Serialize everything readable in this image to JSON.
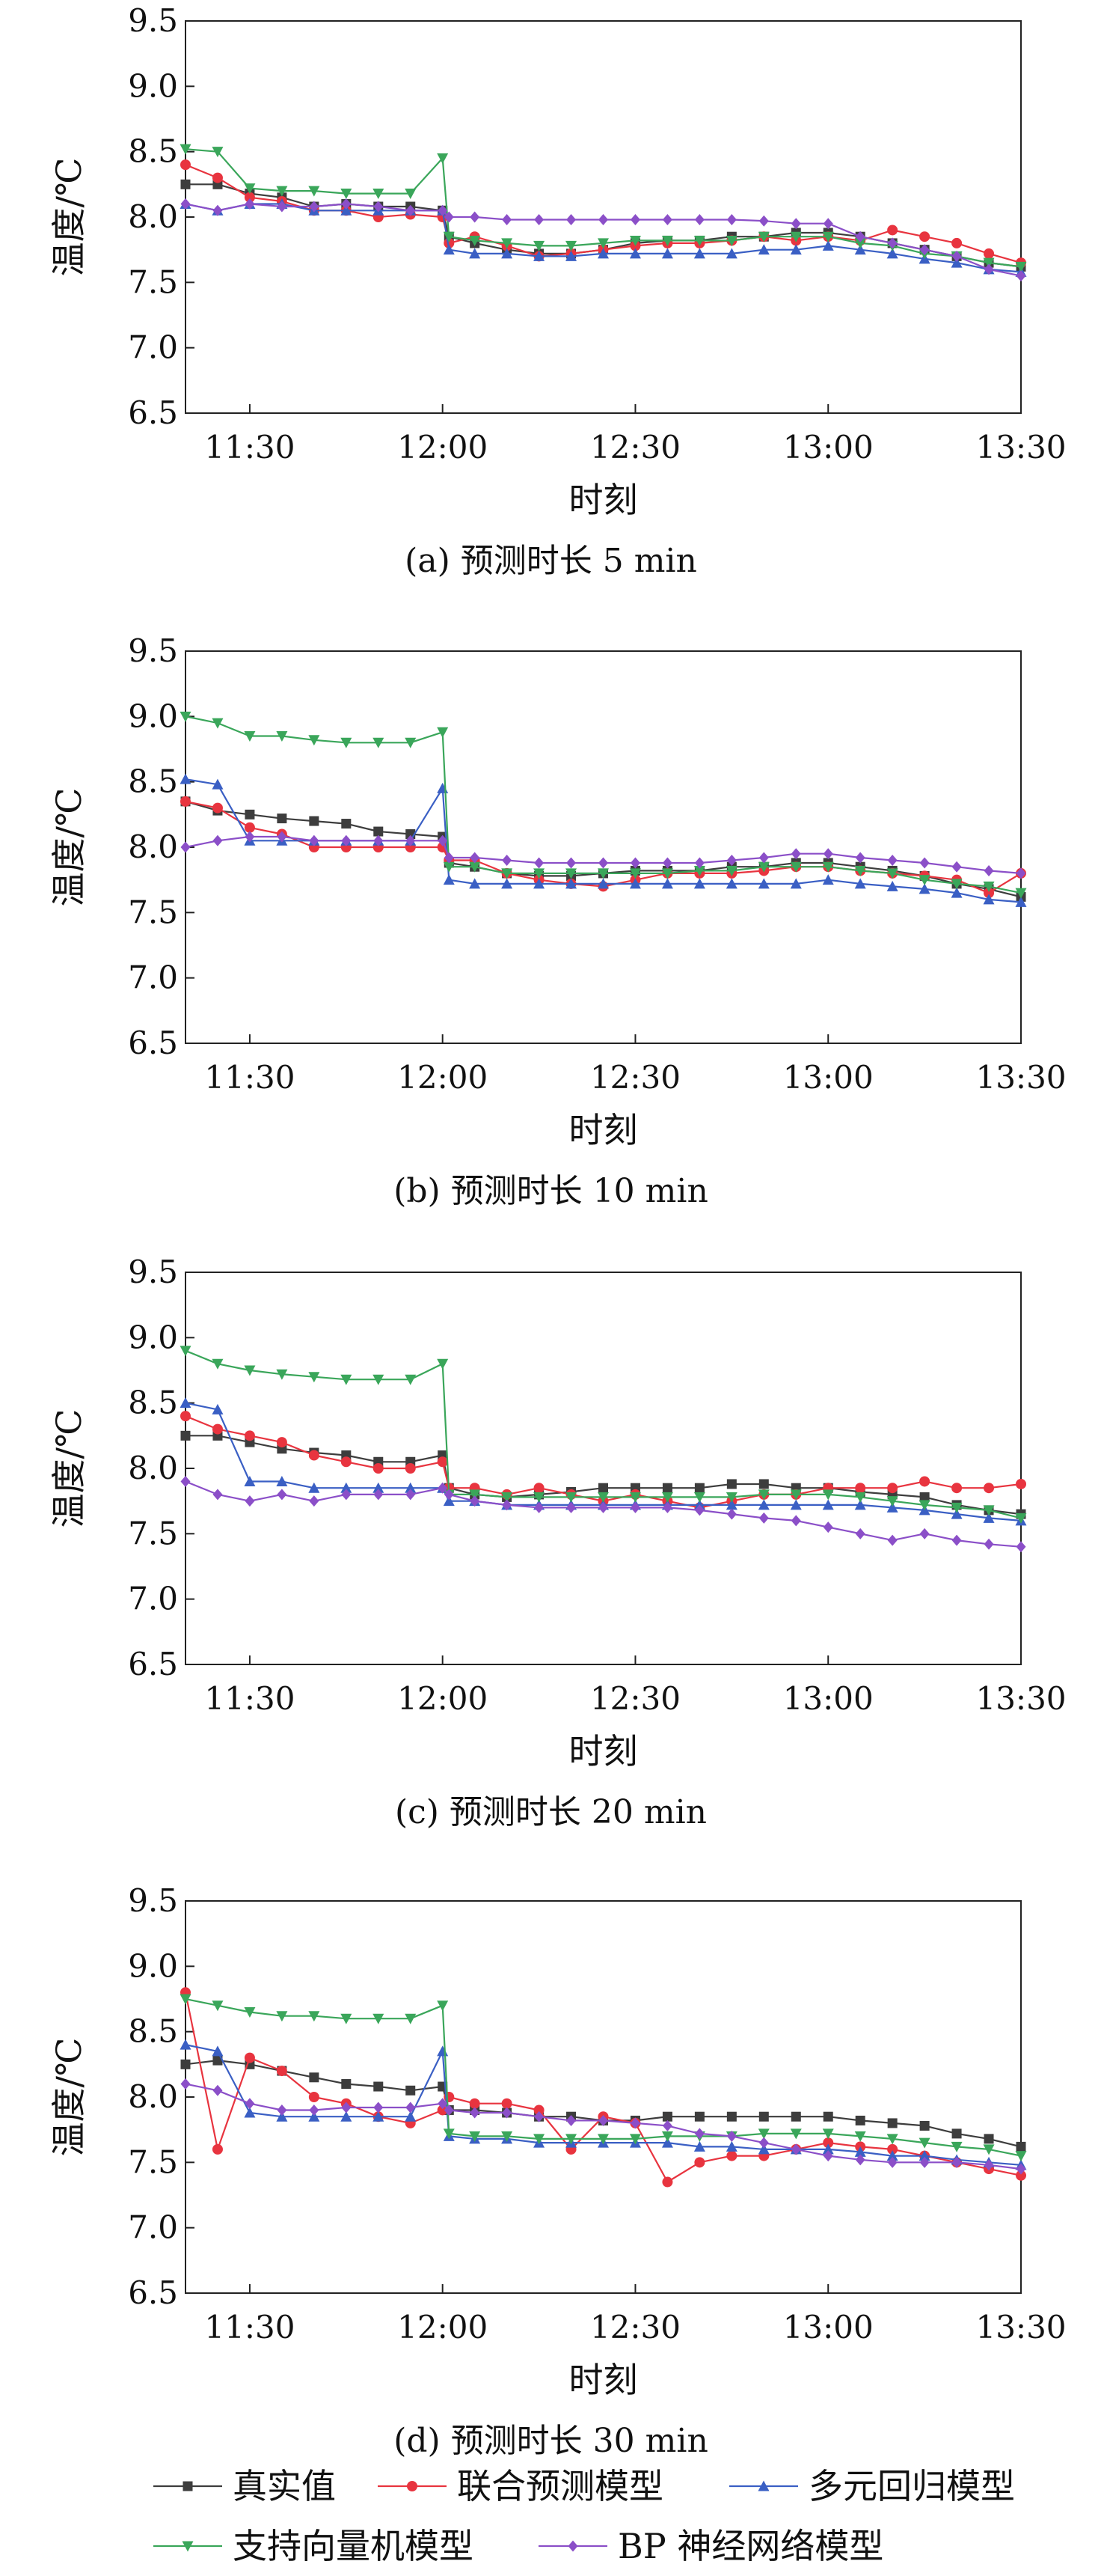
{
  "series_style": [
    {
      "name": "真实值",
      "color": "#3d3d3d",
      "marker": "square"
    },
    {
      "name": "联合预测模型",
      "color": "#e8343f",
      "marker": "circle"
    },
    {
      "name": "多元回归模型",
      "color": "#3a5fc4",
      "marker": "triangle-up"
    },
    {
      "name": "支持向量机模型",
      "color": "#3aa65a",
      "marker": "triangle-down"
    },
    {
      "name": "BP 神经网络模型",
      "color": "#8b4fc8",
      "marker": "diamond"
    }
  ],
  "legend": {
    "row1": [
      "真实值",
      "联合预测模型",
      "多元回归模型"
    ],
    "row2": [
      "支持向量机模型",
      "BP 神经网络模型"
    ]
  },
  "chart_data": [
    {
      "type": "line",
      "caption": "(a) 预测时长 5 min",
      "xlabel": "时刻",
      "ylabel": "温度/℃",
      "ylim": [
        6.5,
        9.5
      ],
      "yticks": [
        "6.5",
        "7.0",
        "7.5",
        "8.0",
        "8.5",
        "9.0",
        "9.5"
      ],
      "xticks": [
        "11:30",
        "12:00",
        "12:30",
        "13:00",
        "13:30"
      ],
      "x": [
        "11:20",
        "11:25",
        "11:30",
        "11:35",
        "11:40",
        "11:45",
        "11:50",
        "11:55",
        "12:00",
        "12:01",
        "12:05",
        "12:10",
        "12:15",
        "12:20",
        "12:25",
        "12:30",
        "12:35",
        "12:40",
        "12:45",
        "12:50",
        "12:55",
        "13:00",
        "13:05",
        "13:10",
        "13:15",
        "13:20",
        "13:25",
        "13:30"
      ],
      "series": [
        {
          "name": "真实值",
          "values": [
            8.25,
            8.25,
            8.18,
            8.15,
            8.08,
            8.1,
            8.08,
            8.08,
            8.05,
            7.85,
            7.8,
            7.75,
            7.72,
            7.72,
            7.75,
            7.8,
            7.82,
            7.82,
            7.85,
            7.85,
            7.88,
            7.88,
            7.85,
            7.8,
            7.75,
            7.7,
            7.65,
            7.62
          ]
        },
        {
          "name": "联合预测模型",
          "values": [
            8.4,
            8.3,
            8.15,
            8.12,
            8.05,
            8.05,
            8.0,
            8.02,
            8.0,
            7.8,
            7.85,
            7.78,
            7.7,
            7.72,
            7.75,
            7.78,
            7.8,
            7.8,
            7.82,
            7.85,
            7.82,
            7.85,
            7.82,
            7.9,
            7.85,
            7.8,
            7.72,
            7.65
          ]
        },
        {
          "name": "多元回归模型",
          "values": [
            8.1,
            8.05,
            8.1,
            8.1,
            8.05,
            8.05,
            8.05,
            8.05,
            8.05,
            7.75,
            7.72,
            7.72,
            7.7,
            7.7,
            7.72,
            7.72,
            7.72,
            7.72,
            7.72,
            7.75,
            7.75,
            7.78,
            7.75,
            7.72,
            7.68,
            7.65,
            7.6,
            7.58
          ]
        },
        {
          "name": "支持向量机模型",
          "values": [
            8.52,
            8.5,
            8.22,
            8.2,
            8.2,
            8.18,
            8.18,
            8.18,
            8.45,
            7.85,
            7.82,
            7.8,
            7.78,
            7.78,
            7.8,
            7.82,
            7.82,
            7.82,
            7.82,
            7.85,
            7.85,
            7.85,
            7.8,
            7.78,
            7.72,
            7.7,
            7.65,
            7.62
          ]
        },
        {
          "name": "BP 神经网络模型",
          "values": [
            8.1,
            8.05,
            8.1,
            8.08,
            8.08,
            8.1,
            8.08,
            8.05,
            8.05,
            8.0,
            8.0,
            7.98,
            7.98,
            7.98,
            7.98,
            7.98,
            7.98,
            7.98,
            7.98,
            7.97,
            7.95,
            7.95,
            7.85,
            7.8,
            7.75,
            7.7,
            7.6,
            7.55
          ]
        }
      ]
    },
    {
      "type": "line",
      "caption": "(b) 预测时长 10 min",
      "xlabel": "时刻",
      "ylabel": "温度/℃",
      "ylim": [
        6.5,
        9.5
      ],
      "yticks": [
        "6.5",
        "7.0",
        "7.5",
        "8.0",
        "8.5",
        "9.0",
        "9.5"
      ],
      "xticks": [
        "11:30",
        "12:00",
        "12:30",
        "13:00",
        "13:30"
      ],
      "x": [
        "11:20",
        "11:25",
        "11:30",
        "11:35",
        "11:40",
        "11:45",
        "11:50",
        "11:55",
        "12:00",
        "12:01",
        "12:05",
        "12:10",
        "12:15",
        "12:20",
        "12:25",
        "12:30",
        "12:35",
        "12:40",
        "12:45",
        "12:50",
        "12:55",
        "13:00",
        "13:05",
        "13:10",
        "13:15",
        "13:20",
        "13:25",
        "13:30"
      ],
      "series": [
        {
          "name": "真实值",
          "values": [
            8.35,
            8.28,
            8.25,
            8.22,
            8.2,
            8.18,
            8.12,
            8.1,
            8.08,
            7.88,
            7.85,
            7.8,
            7.78,
            7.78,
            7.8,
            7.82,
            7.82,
            7.82,
            7.85,
            7.85,
            7.88,
            7.88,
            7.85,
            7.82,
            7.78,
            7.72,
            7.68,
            7.62
          ]
        },
        {
          "name": "联合预测模型",
          "values": [
            8.35,
            8.3,
            8.15,
            8.1,
            8.0,
            8.0,
            8.0,
            8.0,
            8.0,
            7.9,
            7.9,
            7.8,
            7.75,
            7.72,
            7.7,
            7.75,
            7.8,
            7.8,
            7.8,
            7.82,
            7.85,
            7.85,
            7.82,
            7.8,
            7.78,
            7.75,
            7.65,
            7.8
          ]
        },
        {
          "name": "多元回归模型",
          "values": [
            8.52,
            8.48,
            8.05,
            8.05,
            8.05,
            8.05,
            8.05,
            8.05,
            8.45,
            7.75,
            7.72,
            7.72,
            7.72,
            7.72,
            7.72,
            7.72,
            7.72,
            7.72,
            7.72,
            7.72,
            7.72,
            7.75,
            7.72,
            7.7,
            7.68,
            7.65,
            7.6,
            7.58
          ]
        },
        {
          "name": "支持向量机模型",
          "values": [
            9.0,
            8.95,
            8.85,
            8.85,
            8.82,
            8.8,
            8.8,
            8.8,
            8.88,
            7.85,
            7.85,
            7.8,
            7.8,
            7.8,
            7.8,
            7.8,
            7.8,
            7.82,
            7.82,
            7.85,
            7.85,
            7.85,
            7.82,
            7.8,
            7.75,
            7.72,
            7.7,
            7.65
          ]
        },
        {
          "name": "BP 神经网络模型",
          "values": [
            8.0,
            8.05,
            8.08,
            8.08,
            8.05,
            8.05,
            8.05,
            8.05,
            8.05,
            7.92,
            7.92,
            7.9,
            7.88,
            7.88,
            7.88,
            7.88,
            7.88,
            7.88,
            7.9,
            7.92,
            7.95,
            7.95,
            7.92,
            7.9,
            7.88,
            7.85,
            7.82,
            7.8
          ]
        }
      ]
    },
    {
      "type": "line",
      "caption": "(c) 预测时长 20 min",
      "xlabel": "时刻",
      "ylabel": "温度/℃",
      "ylim": [
        6.5,
        9.5
      ],
      "yticks": [
        "6.5",
        "7.0",
        "7.5",
        "8.0",
        "8.5",
        "9.0",
        "9.5"
      ],
      "xticks": [
        "11:30",
        "12:00",
        "12:30",
        "13:00",
        "13:30"
      ],
      "x": [
        "11:20",
        "11:25",
        "11:30",
        "11:35",
        "11:40",
        "11:45",
        "11:50",
        "11:55",
        "12:00",
        "12:01",
        "12:05",
        "12:10",
        "12:15",
        "12:20",
        "12:25",
        "12:30",
        "12:35",
        "12:40",
        "12:45",
        "12:50",
        "12:55",
        "13:00",
        "13:05",
        "13:10",
        "13:15",
        "13:20",
        "13:25",
        "13:30"
      ],
      "series": [
        {
          "name": "真实值",
          "values": [
            8.25,
            8.25,
            8.2,
            8.15,
            8.12,
            8.1,
            8.05,
            8.05,
            8.1,
            7.85,
            7.8,
            7.78,
            7.8,
            7.82,
            7.85,
            7.85,
            7.85,
            7.85,
            7.88,
            7.88,
            7.85,
            7.85,
            7.82,
            7.8,
            7.78,
            7.72,
            7.68,
            7.65
          ]
        },
        {
          "name": "联合预测模型",
          "values": [
            8.4,
            8.3,
            8.25,
            8.2,
            8.1,
            8.05,
            8.0,
            8.0,
            8.05,
            7.85,
            7.85,
            7.8,
            7.85,
            7.8,
            7.75,
            7.8,
            7.75,
            7.7,
            7.75,
            7.8,
            7.8,
            7.85,
            7.85,
            7.85,
            7.9,
            7.85,
            7.85,
            7.88
          ]
        },
        {
          "name": "多元回归模型",
          "values": [
            8.5,
            8.45,
            7.9,
            7.9,
            7.85,
            7.85,
            7.85,
            7.85,
            7.85,
            7.75,
            7.75,
            7.72,
            7.72,
            7.72,
            7.72,
            7.72,
            7.72,
            7.72,
            7.72,
            7.72,
            7.72,
            7.72,
            7.72,
            7.7,
            7.68,
            7.65,
            7.62,
            7.6
          ]
        },
        {
          "name": "支持向量机模型",
          "values": [
            8.9,
            8.8,
            8.75,
            8.72,
            8.7,
            8.68,
            8.68,
            8.68,
            8.8,
            7.8,
            7.8,
            7.78,
            7.78,
            7.78,
            7.78,
            7.78,
            7.78,
            7.78,
            7.78,
            7.8,
            7.8,
            7.8,
            7.78,
            7.75,
            7.72,
            7.7,
            7.68,
            7.62
          ]
        },
        {
          "name": "BP 神经网络模型",
          "values": [
            7.9,
            7.8,
            7.75,
            7.8,
            7.75,
            7.8,
            7.8,
            7.8,
            7.85,
            7.8,
            7.75,
            7.72,
            7.7,
            7.7,
            7.7,
            7.7,
            7.7,
            7.68,
            7.65,
            7.62,
            7.6,
            7.55,
            7.5,
            7.45,
            7.5,
            7.45,
            7.42,
            7.4
          ]
        }
      ]
    },
    {
      "type": "line",
      "caption": "(d) 预测时长 30 min",
      "xlabel": "时刻",
      "ylabel": "温度/℃",
      "ylim": [
        6.5,
        9.5
      ],
      "yticks": [
        "6.5",
        "7.0",
        "7.5",
        "8.0",
        "8.5",
        "9.0",
        "9.5"
      ],
      "xticks": [
        "11:30",
        "12:00",
        "12:30",
        "13:00",
        "13:30"
      ],
      "x": [
        "11:20",
        "11:25",
        "11:30",
        "11:35",
        "11:40",
        "11:45",
        "11:50",
        "11:55",
        "12:00",
        "12:01",
        "12:05",
        "12:10",
        "12:15",
        "12:20",
        "12:25",
        "12:30",
        "12:35",
        "12:40",
        "12:45",
        "12:50",
        "12:55",
        "13:00",
        "13:05",
        "13:10",
        "13:15",
        "13:20",
        "13:25",
        "13:30"
      ],
      "series": [
        {
          "name": "真实值",
          "values": [
            8.25,
            8.28,
            8.25,
            8.2,
            8.15,
            8.1,
            8.08,
            8.05,
            8.08,
            7.9,
            7.9,
            7.88,
            7.85,
            7.85,
            7.82,
            7.82,
            7.85,
            7.85,
            7.85,
            7.85,
            7.85,
            7.85,
            7.82,
            7.8,
            7.78,
            7.72,
            7.68,
            7.62
          ]
        },
        {
          "name": "联合预测模型",
          "values": [
            8.8,
            7.6,
            8.3,
            8.2,
            8.0,
            7.95,
            7.85,
            7.8,
            7.9,
            8.0,
            7.95,
            7.95,
            7.9,
            7.6,
            7.85,
            7.8,
            7.35,
            7.5,
            7.55,
            7.55,
            7.6,
            7.65,
            7.62,
            7.6,
            7.55,
            7.5,
            7.45,
            7.4
          ]
        },
        {
          "name": "多元回归模型",
          "values": [
            8.4,
            8.35,
            7.88,
            7.85,
            7.85,
            7.85,
            7.85,
            7.85,
            8.35,
            7.7,
            7.68,
            7.68,
            7.65,
            7.65,
            7.65,
            7.65,
            7.65,
            7.62,
            7.62,
            7.6,
            7.6,
            7.6,
            7.58,
            7.55,
            7.55,
            7.52,
            7.5,
            7.48
          ]
        },
        {
          "name": "支持向量机模型",
          "values": [
            8.75,
            8.7,
            8.65,
            8.62,
            8.62,
            8.6,
            8.6,
            8.6,
            8.7,
            7.72,
            7.7,
            7.7,
            7.68,
            7.68,
            7.68,
            7.68,
            7.7,
            7.7,
            7.7,
            7.72,
            7.72,
            7.72,
            7.7,
            7.68,
            7.65,
            7.62,
            7.6,
            7.55
          ]
        },
        {
          "name": "BP 神经网络模型",
          "values": [
            8.1,
            8.05,
            7.95,
            7.9,
            7.9,
            7.92,
            7.92,
            7.92,
            7.95,
            7.9,
            7.88,
            7.88,
            7.85,
            7.82,
            7.82,
            7.8,
            7.78,
            7.72,
            7.7,
            7.65,
            7.6,
            7.55,
            7.52,
            7.5,
            7.5,
            7.5,
            7.48,
            7.45
          ]
        }
      ]
    }
  ]
}
